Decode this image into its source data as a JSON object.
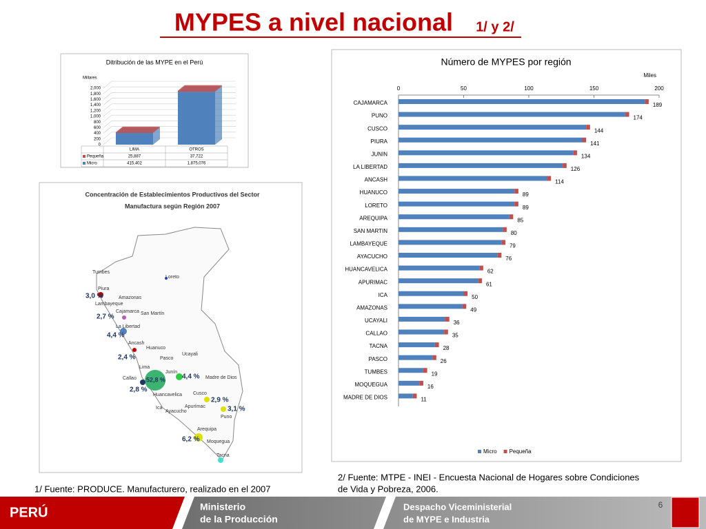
{
  "title": "MYPES a nivel nacional",
  "title_note": "1/ y 2/",
  "chart_data": [
    {
      "type": "bar",
      "stacked": true,
      "title": "Ditribución de las MYPE en el Perú",
      "y_label": "Millares",
      "categories": [
        "LIMA",
        "OTROS"
      ],
      "series": [
        {
          "name": "Pequeña",
          "color": "#c0504d",
          "values": [
            25.887,
            37.722
          ],
          "value_labels": [
            "25,887",
            "37,722"
          ]
        },
        {
          "name": "Micro",
          "color": "#4f81bd",
          "values": [
            415.402,
            1875.076
          ],
          "value_labels": [
            "415,402",
            "1,875,076"
          ]
        }
      ],
      "ylim": [
        0,
        2000
      ],
      "yticks": [
        0,
        200,
        400,
        600,
        800,
        {
          "value": 1000,
          "label": "1,000"
        },
        {
          "value": 1200,
          "label": "1,200"
        },
        {
          "value": 1400,
          "label": "1,400"
        },
        {
          "value": 1600,
          "label": "1,600"
        },
        {
          "value": 1800,
          "label": "1,800"
        },
        {
          "value": 2000,
          "label": "2,000"
        }
      ],
      "grid": true
    },
    {
      "type": "hbar",
      "stacked": true,
      "title": "Número de MYPES por región",
      "x_label": "Miles",
      "categories": [
        "CAJAMARCA",
        "PUNO",
        "CUSCO",
        "PIURA",
        "JUNIN",
        "LA LIBERTAD",
        "ANCASH",
        "HUANUCO",
        "LORETO",
        "AREQUIPA",
        "SAN MARTIN",
        "LAMBAYEQUE",
        "AYACUCHO",
        "HUANCAVELICA",
        "APURIMAC",
        "ICA",
        "AMAZONAS",
        "UCAYALI",
        "CALLAO",
        "TACNA",
        "PASCO",
        "TUMBES",
        "MOQUEGUA",
        "MADRE DE DIOS"
      ],
      "series": [
        {
          "name": "Micro",
          "color": "#4f81bd",
          "values": [
            189,
            174,
            144,
            141,
            134,
            126,
            114,
            89,
            89,
            85,
            80,
            79,
            76,
            62,
            61,
            50,
            49,
            36,
            35,
            28,
            26,
            19,
            16,
            11
          ]
        },
        {
          "name": "Pequeña",
          "color": "#c0504d",
          "values": [
            3,
            3,
            3,
            3,
            3,
            3,
            3,
            3,
            3,
            3,
            3,
            3,
            3,
            3,
            3,
            3,
            3,
            3,
            3,
            3,
            3,
            3,
            3,
            3
          ]
        }
      ],
      "xlim": [
        0,
        200
      ],
      "xticks": [
        0,
        50,
        100,
        150,
        200
      ],
      "legend": "bottom"
    }
  ],
  "map": {
    "title": [
      "Concentración de Establecimientos Productivos del Sector",
      "Manufactura según Región 2007"
    ],
    "regions": [
      "Tumbes",
      "Piura",
      "Lambayeque",
      "Cajamarca",
      "Amazonas",
      "Loreto",
      "La Libertad",
      "San Martín",
      "Ancash",
      "Huanuco",
      "Ucayali",
      "Pasco",
      "Lima",
      "Junín",
      "Madre de Dios",
      "Callao",
      "Huancavelica",
      "Cusco",
      "Ica",
      "Ayacucho",
      "Apurímac",
      "Puno",
      "Arequipa",
      "Moquegua",
      "Tacna"
    ],
    "percents": [
      "3,0 %",
      "2,7 %",
      "4,4 %",
      "2,4 %",
      "52,8 %",
      "4,4 %",
      "2,8 %",
      "2,9 %",
      "3,1 %",
      "6,2 %"
    ]
  },
  "footnotes": [
    "1/ Fuente: PRODUCE. Manufacturero, realizado en el 2007",
    "2/ Fuente: MTPE - INEI - Encuesta Nacional de Hogares  sobre Condiciones",
    "de Vida y Pobreza, 2006."
  ],
  "footer": {
    "country": "PERÚ",
    "ministry": [
      "Ministerio",
      "de la Producción"
    ],
    "office": [
      "Despacho Viceministerial",
      "de MYPE e Industria"
    ],
    "page": "6"
  }
}
